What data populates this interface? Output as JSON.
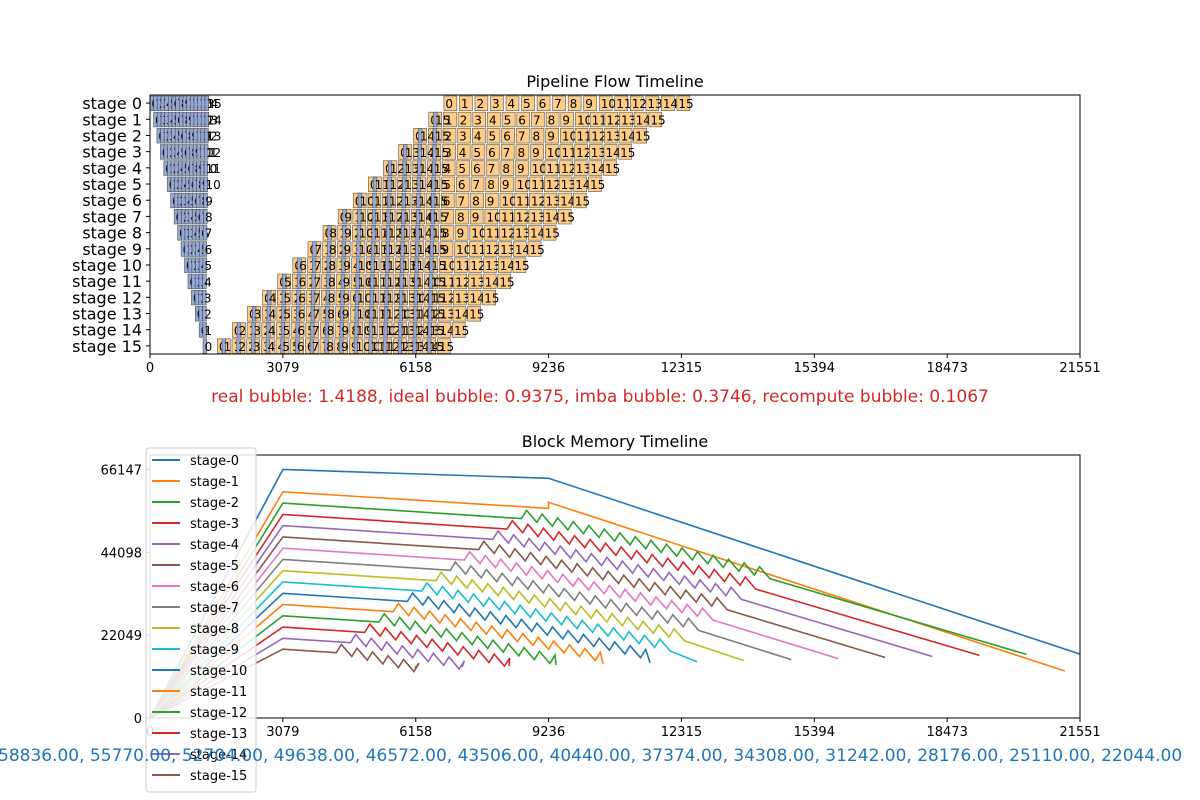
{
  "colors": {
    "forward": "#94a8d8",
    "backward": "#ffcc85",
    "bubble_text": "#d62728",
    "footer_text": "#1f77b4",
    "tab10": [
      "#1f77b4",
      "#ff7f0e",
      "#2ca02c",
      "#d62728",
      "#9467bd",
      "#8c564b",
      "#e377c2",
      "#7f7f7f",
      "#bcbd22",
      "#17becf"
    ]
  },
  "bubble_text": "real bubble: 1.4188, ideal bubble: 0.9375, imba bubble: 0.3746, recompute bubble: 0.1067",
  "memory_footer": "58836.00, 55770.00, 52704.00, 49638.00, 46572.00, 43506.00, 40440.00, 37374.00, 34308.00, 31242.00, 28176.00, 25110.00, 22044.00",
  "chart_data": [
    {
      "type": "timeline",
      "title": "Pipeline Flow Timeline",
      "xlim": [
        0,
        21551
      ],
      "xticks": [
        0,
        3079,
        6158,
        9236,
        12315,
        15394,
        18473,
        21551
      ],
      "stages": [
        "stage 0",
        "stage 1",
        "stage 2",
        "stage 3",
        "stage 4",
        "stage 5",
        "stage 6",
        "stage 7",
        "stage 8",
        "stage 9",
        "stage 10",
        "stage 11",
        "stage 12",
        "stage 13",
        "stage 14",
        "stage 15"
      ],
      "microbatches": 16,
      "forward_start": [
        0,
        85,
        160,
        240,
        320,
        400,
        480,
        560,
        640,
        720,
        800,
        880,
        960,
        1050,
        1140,
        1230
      ],
      "forward_duration": 85,
      "backward_start_last_stage": 1560,
      "backward_stage_shift": 350,
      "backward_duration": 300,
      "backward_interval_steady": 340,
      "backward_interval_first_stage": 360,
      "recompute_offset": 150,
      "grid": false
    },
    {
      "type": "line",
      "title": "Block Memory Timeline",
      "xlim": [
        0,
        21551
      ],
      "ylim": [
        0,
        70000
      ],
      "xticks": [
        0,
        3079,
        6158,
        9236,
        12315,
        15394,
        18473,
        21551
      ],
      "yticks": [
        0,
        22049,
        44098,
        66147
      ],
      "legend_position": "upper-left",
      "series": [
        {
          "name": "stage-0",
          "peak": 66147,
          "peak_x": 3079,
          "plateau_end": [
            9236,
            63800
          ],
          "end": [
            21551,
            17000
          ]
        },
        {
          "name": "stage-1",
          "peak": 60200,
          "peak_x": 3079,
          "plateau_end": [
            9236,
            55800
          ],
          "end": [
            21200,
            12500
          ]
        },
        {
          "name": "stage-2",
          "peak": 57200,
          "peak_x": 3079
        },
        {
          "name": "stage-3",
          "peak": 54200,
          "peak_x": 3079
        },
        {
          "name": "stage-4",
          "peak": 51200,
          "peak_x": 3079
        },
        {
          "name": "stage-5",
          "peak": 48200,
          "peak_x": 3079
        },
        {
          "name": "stage-6",
          "peak": 45200,
          "peak_x": 3079
        },
        {
          "name": "stage-7",
          "peak": 42200,
          "peak_x": 3079
        },
        {
          "name": "stage-8",
          "peak": 39200,
          "peak_x": 3079
        },
        {
          "name": "stage-9",
          "peak": 36200,
          "peak_x": 3079
        },
        {
          "name": "stage-10",
          "peak": 33200,
          "peak_x": 3079
        },
        {
          "name": "stage-11",
          "peak": 30200,
          "peak_x": 3079
        },
        {
          "name": "stage-12",
          "peak": 27200,
          "peak_x": 3079
        },
        {
          "name": "stage-13",
          "peak": 24200,
          "peak_x": 3079
        },
        {
          "name": "stage-14",
          "peak": 21200,
          "peak_x": 3079
        },
        {
          "name": "stage-15",
          "peak": 18300,
          "peak_x": 3079
        }
      ]
    }
  ]
}
